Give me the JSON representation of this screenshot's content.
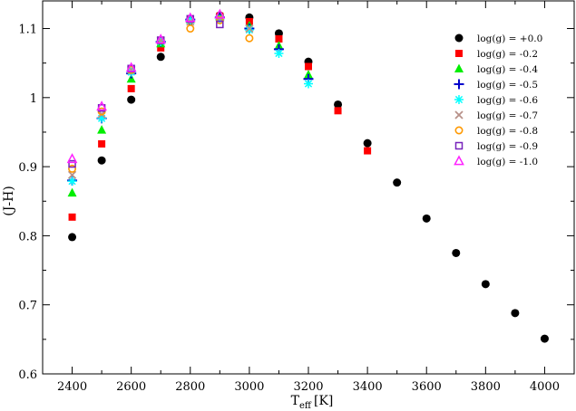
{
  "chart_data": {
    "type": "scatter",
    "xlabel": {
      "main": "T",
      "sub": "eff",
      "unit": "[K]"
    },
    "ylabel": "(J-H)",
    "xlim": [
      2300,
      4100
    ],
    "ylim": [
      0.6,
      1.14
    ],
    "xticks": [
      2400,
      2600,
      2800,
      3000,
      3200,
      3400,
      3600,
      3800,
      4000
    ],
    "xtick_labels": [
      "2400",
      "2600",
      "2800",
      "3000",
      "3200",
      "3400",
      "3600",
      "3800",
      "4000"
    ],
    "yticks": [
      0.6,
      0.7,
      0.8,
      0.9,
      1.0,
      1.1
    ],
    "ytick_labels": [
      "0.6",
      "0.7",
      "0.8",
      "0.9",
      "1",
      "1.1"
    ],
    "grid": false,
    "legend_position": "top-right",
    "series": [
      {
        "name": "log(g) = +0.0",
        "marker": "circle-filled",
        "color": "#000000",
        "x": [
          2400,
          2500,
          2600,
          2700,
          2800,
          2900,
          3000,
          3100,
          3200,
          3300,
          3400,
          3500,
          3600,
          3700,
          3800,
          3900,
          4000
        ],
        "y": [
          0.798,
          0.909,
          0.997,
          1.059,
          1.111,
          1.119,
          1.116,
          1.093,
          1.052,
          0.99,
          0.934,
          0.877,
          0.825,
          0.775,
          0.73,
          0.688,
          0.651
        ]
      },
      {
        "name": "log(g) = -0.2",
        "marker": "square-filled",
        "color": "#ff0000",
        "x": [
          2400,
          2500,
          2600,
          2700,
          2800,
          2900,
          3000,
          3100,
          3200,
          3300,
          3400
        ],
        "y": [
          0.827,
          0.933,
          1.013,
          1.072,
          1.114,
          1.118,
          1.11,
          1.085,
          1.045,
          0.981,
          0.923
        ]
      },
      {
        "name": "log(g) = -0.4",
        "marker": "triangle-filled",
        "color": "#00ee00",
        "x": [
          2400,
          2500,
          2600,
          2700,
          2800,
          2900,
          3000,
          3100,
          3200
        ],
        "y": [
          0.862,
          0.953,
          1.027,
          1.078,
          1.113,
          1.117,
          1.104,
          1.075,
          1.033
        ]
      },
      {
        "name": "log(g) = -0.5",
        "marker": "plus",
        "color": "#0000cc",
        "x": [
          2400,
          2500,
          2600,
          2700,
          2800,
          2900,
          3000,
          3100,
          3200
        ],
        "y": [
          0.88,
          0.97,
          1.035,
          1.081,
          1.113,
          1.116,
          1.1,
          1.07,
          1.027
        ]
      },
      {
        "name": "log(g) = -0.6",
        "marker": "asterisk",
        "color": "#00ffff",
        "x": [
          2400,
          2500,
          2600,
          2700,
          2800,
          2900,
          3000,
          3100,
          3200
        ],
        "y": [
          0.879,
          0.97,
          1.037,
          1.081,
          1.112,
          1.113,
          1.098,
          1.064,
          1.02
        ]
      },
      {
        "name": "log(g) = -0.7",
        "marker": "x",
        "color": "#b8928a",
        "x": [
          2400,
          2500,
          2600,
          2700,
          2800,
          2900,
          3000
        ],
        "y": [
          0.888,
          0.976,
          1.04,
          1.083,
          1.11,
          1.115,
          1.1
        ]
      },
      {
        "name": "log(g) = -0.8",
        "marker": "circle-open",
        "color": "#ff9900",
        "x": [
          2400,
          2500,
          2600,
          2700,
          2800,
          2900,
          3000
        ],
        "y": [
          0.897,
          0.98,
          1.04,
          1.083,
          1.1,
          1.112,
          1.086
        ]
      },
      {
        "name": "log(g) = -0.9",
        "marker": "square-open",
        "color": "#7722bb",
        "x": [
          2400,
          2500,
          2600,
          2700,
          2800,
          2900
        ],
        "y": [
          0.904,
          0.985,
          1.042,
          1.083,
          1.114,
          1.106
        ]
      },
      {
        "name": "log(g) = -1.0",
        "marker": "triangle-open",
        "color": "#ff22ff",
        "x": [
          2400,
          2500,
          2600,
          2700,
          2800,
          2900
        ],
        "y": [
          0.911,
          0.987,
          1.043,
          1.084,
          1.115,
          1.12
        ]
      }
    ]
  }
}
